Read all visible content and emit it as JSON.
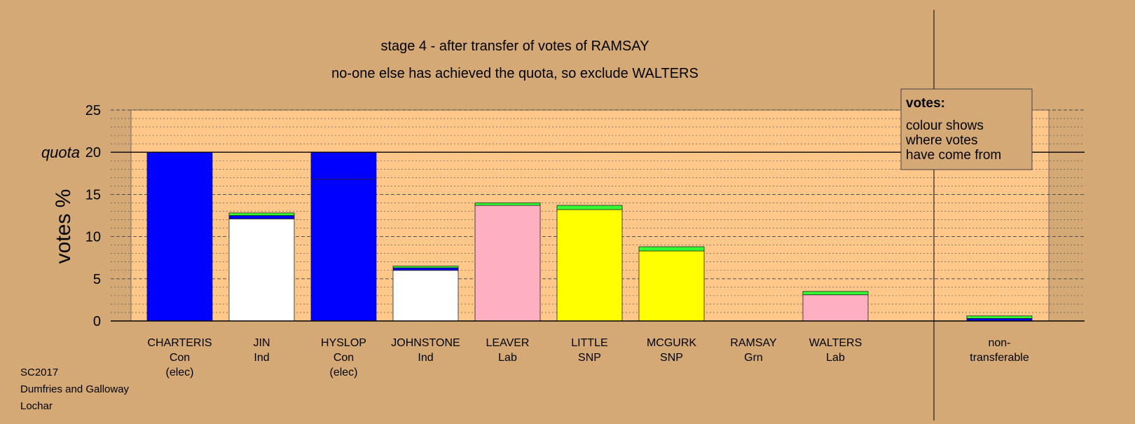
{
  "colors": {
    "background": "#d4a976",
    "plot_area": "#ffc78a",
    "grid": "#444444",
    "legend_bg": "#d4a976"
  },
  "chart_data": {
    "type": "bar",
    "title": "stage 4 - after transfer of votes of RAMSAY",
    "subtitle": "no-one else has achieved the quota, so exclude WALTERS",
    "ylabel": "votes %",
    "ylim": [
      0,
      25
    ],
    "yticks": [
      0,
      5,
      10,
      15,
      20,
      25
    ],
    "quota": {
      "label": "quota",
      "value": 20
    },
    "grid": true,
    "legend_placement": "top-right",
    "legend": {
      "title": "votes:",
      "lines": [
        "colour shows",
        "where votes",
        "have come from"
      ]
    },
    "categories": [
      {
        "name": "CHARTERIS",
        "party": "Con",
        "status": "(elec)",
        "segments": [
          {
            "source": "Con",
            "value": 20.0,
            "color": "#0000ff"
          }
        ]
      },
      {
        "name": "JIN",
        "party": "Ind",
        "status": "",
        "segments": [
          {
            "source": "Ind",
            "value": 12.1,
            "color": "#ffffff"
          },
          {
            "source": "Con",
            "value": 0.4,
            "color": "#0000ff"
          },
          {
            "source": "Grn",
            "value": 0.3,
            "color": "#33ff33"
          }
        ]
      },
      {
        "name": "HYSLOP",
        "party": "Con",
        "status": "(elec)",
        "segments": [
          {
            "source": "Con",
            "value": 16.8,
            "color": "#0000ff"
          },
          {
            "source": "Con",
            "value": 3.2,
            "color": "#0000ff"
          }
        ]
      },
      {
        "name": "JOHNSTONE",
        "party": "Ind",
        "status": "",
        "segments": [
          {
            "source": "Ind",
            "value": 6.0,
            "color": "#ffffff"
          },
          {
            "source": "Con",
            "value": 0.3,
            "color": "#0000ff"
          },
          {
            "source": "Grn",
            "value": 0.2,
            "color": "#33ff33"
          }
        ]
      },
      {
        "name": "LEAVER",
        "party": "Lab",
        "status": "",
        "segments": [
          {
            "source": "Lab",
            "value": 13.7,
            "color": "#ffb0c0"
          },
          {
            "source": "Grn",
            "value": 0.3,
            "color": "#33ff33"
          }
        ]
      },
      {
        "name": "LITTLE",
        "party": "SNP",
        "status": "",
        "segments": [
          {
            "source": "SNP",
            "value": 13.2,
            "color": "#ffff00"
          },
          {
            "source": "Grn",
            "value": 0.5,
            "color": "#33ff33"
          }
        ]
      },
      {
        "name": "MCGURK",
        "party": "SNP",
        "status": "",
        "segments": [
          {
            "source": "SNP",
            "value": 8.3,
            "color": "#ffff00"
          },
          {
            "source": "Grn",
            "value": 0.5,
            "color": "#33ff33"
          }
        ]
      },
      {
        "name": "RAMSAY",
        "party": "Grn",
        "status": "",
        "segments": []
      },
      {
        "name": "WALTERS",
        "party": "Lab",
        "status": "",
        "segments": [
          {
            "source": "Lab",
            "value": 3.1,
            "color": "#ffb0c0"
          },
          {
            "source": "Grn",
            "value": 0.4,
            "color": "#33ff33"
          }
        ]
      }
    ],
    "non_transferable": {
      "label_line1": "non-",
      "label_line2": "transferable",
      "segments": [
        {
          "source": "Con",
          "value": 0.3,
          "color": "#0000ff"
        },
        {
          "source": "Grn",
          "value": 0.3,
          "color": "#33ff33"
        }
      ]
    }
  },
  "footer": {
    "line1": "SC2017",
    "line2": "Dumfries and Galloway",
    "line3": "Lochar"
  }
}
